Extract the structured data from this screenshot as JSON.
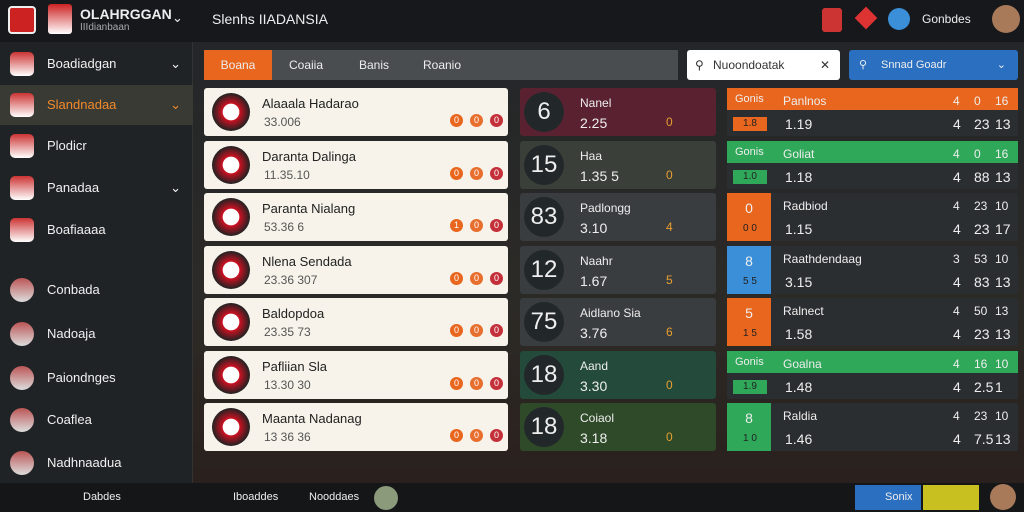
{
  "header": {
    "brand": "OLAHRGGAN",
    "brand_sub": "IIIdianbaan",
    "title": "Slenhs IIADANSIA",
    "user": "Gonbdes"
  },
  "sidebar": {
    "items": [
      "Boadiadgan",
      "Slandnadaa",
      "Plodicr",
      "Panadaa",
      "Boafiaaaa",
      "Conbada",
      "Nadoaja",
      "Paiondnges",
      "Coaflea",
      "Nadhnaadua"
    ]
  },
  "tabs": [
    "Boana",
    "Coaiia",
    "Banis",
    "Roanio"
  ],
  "search": {
    "placeholder": "Nuoondoatak",
    "button": "Snnad Goadr"
  },
  "matches": [
    {
      "name": "Alaaala Hadarao",
      "time": "33.006",
      "badges": [
        "0",
        "0",
        "0"
      ]
    },
    {
      "name": "Daranta Dalinga",
      "time": "11.35.10",
      "badges": [
        "0",
        "0",
        "0"
      ]
    },
    {
      "name": "Paranta Nialang",
      "time": "53.36 6",
      "badges": [
        "1",
        "0",
        "0"
      ]
    },
    {
      "name": "Nlena Sendada",
      "time": "23.36 307",
      "badges": [
        "0",
        "0",
        "0"
      ]
    },
    {
      "name": "Baldopdoa",
      "time": "23.35 73",
      "badges": [
        "0",
        "0",
        "0"
      ]
    },
    {
      "name": "Pafliian Sla",
      "time": "13.30 30",
      "badges": [
        "0",
        "0",
        "0"
      ]
    },
    {
      "name": "Maanta Nadanag",
      "time": "13 36 36",
      "badges": [
        "0",
        "0",
        "0"
      ]
    }
  ],
  "scores": [
    {
      "number": "6",
      "label": "Nanel",
      "value": "2.25",
      "mark": "0"
    },
    {
      "number": "15",
      "label": "Haa",
      "value": "1.35 5",
      "mark": "0"
    },
    {
      "number": "83",
      "label": "Padlongg",
      "value": "3.10",
      "mark": "4"
    },
    {
      "number": "12",
      "label": "Naahr",
      "value": "1.67",
      "mark": "5"
    },
    {
      "number": "75",
      "label": "Aidlano Sia",
      "value": "3.76",
      "mark": "6"
    },
    {
      "number": "18",
      "label": "Aand",
      "value": "3.30",
      "mark": "0"
    },
    {
      "number": "18",
      "label": "Coiaol",
      "value": "3.18",
      "mark": "0"
    }
  ],
  "markets": [
    {
      "tag": "Gonis",
      "color": "#e8661e",
      "name": "Panlnos",
      "top": [
        "4",
        "0",
        "16"
      ],
      "badge": "1.8",
      "odds": "1.19",
      "bottom": [
        "4",
        "23",
        "13"
      ]
    },
    {
      "tag": "Gonis",
      "color": "#2fa85a",
      "name": "Goliat",
      "top": [
        "4",
        "0",
        "16"
      ],
      "badge": "1.0",
      "odds": "1.18",
      "bottom": [
        "4",
        "88",
        "13"
      ]
    },
    {
      "tag": "0",
      "color": "#e8661e",
      "name": "Radbiod",
      "top": [
        "4",
        "23",
        "10"
      ],
      "badge": "0 0",
      "odds": "1.15",
      "bottom": [
        "4",
        "23",
        "17"
      ]
    },
    {
      "tag": "8",
      "color": "#3a8fd8",
      "name": "Raathdendaag",
      "top": [
        "3",
        "53",
        "10"
      ],
      "badge": "5 5",
      "odds": "3.15",
      "bottom": [
        "4",
        "83",
        "13"
      ]
    },
    {
      "tag": "5",
      "color": "#e8661e",
      "name": "Ralnect",
      "top": [
        "4",
        "50",
        "13"
      ],
      "badge": "1 5",
      "odds": "1.58",
      "bottom": [
        "4",
        "23",
        "13"
      ]
    },
    {
      "tag": "Gonis",
      "color": "#2fa85a",
      "name": "Goalna",
      "top": [
        "4",
        "16",
        "10"
      ],
      "badge": "1.9",
      "odds": "1.48",
      "bottom": [
        "4",
        "2.5",
        "1"
      ]
    },
    {
      "tag": "8",
      "color": "#2fa85a",
      "name": "Raldia",
      "top": [
        "4",
        "23",
        "10"
      ],
      "badge": "1 0",
      "odds": "1.46",
      "bottom": [
        "4",
        "7.5",
        "13"
      ]
    }
  ],
  "footer": {
    "items": [
      "Dabdes",
      "Iboaddes",
      "Nooddaes"
    ],
    "button": "Sonix"
  }
}
